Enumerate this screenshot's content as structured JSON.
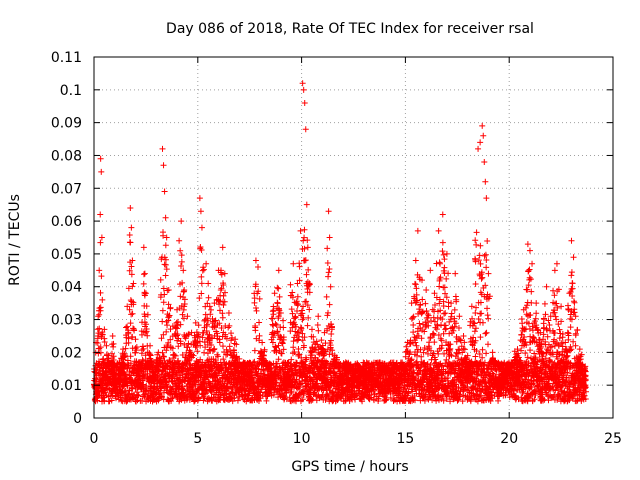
{
  "chart_data": {
    "type": "scatter",
    "title": "Day 086 of 2018, Rate Of TEC Index for receiver rsal",
    "xlabel": "GPS time / hours",
    "ylabel": "ROTI / TECUs",
    "xlim": [
      0,
      25
    ],
    "ylim": [
      0,
      0.11
    ],
    "xticks": [
      0,
      5,
      10,
      15,
      20,
      25
    ],
    "yticks": [
      0,
      0.01,
      0.02,
      0.03,
      0.04,
      0.05,
      0.06,
      0.07,
      0.08,
      0.09,
      0.1,
      0.11
    ],
    "xtick_labels": [
      "0",
      "5",
      "10",
      "15",
      "20",
      "25"
    ],
    "ytick_labels": [
      "0",
      "0.01",
      "0.02",
      "0.03",
      "0.04",
      "0.05",
      "0.06",
      "0.07",
      "0.08",
      "0.09",
      "0.1",
      "0.11"
    ],
    "grid": true,
    "marker": "plus",
    "color": "#ff0000",
    "time_range": [
      0,
      23.7
    ],
    "points": [
      [
        0.05,
        0.012
      ],
      [
        0.1,
        0.023
      ],
      [
        0.15,
        0.009
      ],
      [
        0.2,
        0.031
      ],
      [
        0.25,
        0.045
      ],
      [
        0.3,
        0.062
      ],
      [
        0.32,
        0.079
      ],
      [
        0.35,
        0.075
      ],
      [
        0.38,
        0.055
      ],
      [
        0.4,
        0.036
      ],
      [
        0.45,
        0.018
      ],
      [
        0.5,
        0.027
      ],
      [
        0.55,
        0.014
      ],
      [
        0.6,
        0.022
      ],
      [
        0.7,
        0.019
      ],
      [
        0.8,
        0.011
      ],
      [
        0.9,
        0.025
      ],
      [
        1.0,
        0.016
      ],
      [
        1.2,
        0.013
      ],
      [
        1.4,
        0.021
      ],
      [
        1.6,
        0.034
      ],
      [
        1.75,
        0.064
      ],
      [
        1.8,
        0.058
      ],
      [
        1.85,
        0.048
      ],
      [
        1.9,
        0.041
      ],
      [
        2.0,
        0.024
      ],
      [
        2.2,
        0.017
      ],
      [
        2.4,
        0.052
      ],
      [
        2.45,
        0.044
      ],
      [
        2.5,
        0.038
      ],
      [
        2.7,
        0.022
      ],
      [
        2.9,
        0.015
      ],
      [
        3.1,
        0.02
      ],
      [
        3.3,
        0.082
      ],
      [
        3.35,
        0.077
      ],
      [
        3.4,
        0.069
      ],
      [
        3.45,
        0.061
      ],
      [
        3.5,
        0.055
      ],
      [
        3.6,
        0.039
      ],
      [
        3.8,
        0.028
      ],
      [
        4.0,
        0.033
      ],
      [
        4.1,
        0.054
      ],
      [
        4.2,
        0.06
      ],
      [
        4.3,
        0.045
      ],
      [
        4.5,
        0.031
      ],
      [
        4.7,
        0.026
      ],
      [
        4.9,
        0.029
      ],
      [
        5.1,
        0.067
      ],
      [
        5.15,
        0.063
      ],
      [
        5.2,
        0.058
      ],
      [
        5.4,
        0.047
      ],
      [
        5.5,
        0.041
      ],
      [
        5.8,
        0.035
      ],
      [
        6.0,
        0.045
      ],
      [
        6.2,
        0.052
      ],
      [
        6.3,
        0.044
      ],
      [
        6.5,
        0.032
      ],
      [
        6.8,
        0.024
      ],
      [
        7.0,
        0.018
      ],
      [
        7.3,
        0.014
      ],
      [
        7.6,
        0.012
      ],
      [
        7.8,
        0.048
      ],
      [
        7.9,
        0.046
      ],
      [
        8.1,
        0.023
      ],
      [
        8.4,
        0.013
      ],
      [
        8.7,
        0.038
      ],
      [
        8.9,
        0.045
      ],
      [
        9.0,
        0.032
      ],
      [
        9.3,
        0.012
      ],
      [
        9.6,
        0.047
      ],
      [
        9.8,
        0.041
      ],
      [
        9.95,
        0.057
      ],
      [
        10.05,
        0.102
      ],
      [
        10.1,
        0.1
      ],
      [
        10.15,
        0.096
      ],
      [
        10.2,
        0.088
      ],
      [
        10.25,
        0.065
      ],
      [
        10.3,
        0.052
      ],
      [
        10.5,
        0.027
      ],
      [
        10.8,
        0.031
      ],
      [
        11.1,
        0.026
      ],
      [
        11.3,
        0.063
      ],
      [
        11.35,
        0.055
      ],
      [
        11.4,
        0.04
      ],
      [
        11.6,
        0.019
      ],
      [
        11.9,
        0.013
      ],
      [
        12.2,
        0.011
      ],
      [
        12.5,
        0.014
      ],
      [
        12.8,
        0.013
      ],
      [
        13.0,
        0.012
      ],
      [
        13.3,
        0.015
      ],
      [
        13.6,
        0.013
      ],
      [
        14.0,
        0.01
      ],
      [
        14.3,
        0.012
      ],
      [
        14.6,
        0.011
      ],
      [
        14.9,
        0.016
      ],
      [
        15.1,
        0.023
      ],
      [
        15.3,
        0.035
      ],
      [
        15.5,
        0.048
      ],
      [
        15.6,
        0.057
      ],
      [
        15.8,
        0.042
      ],
      [
        16.0,
        0.039
      ],
      [
        16.2,
        0.045
      ],
      [
        16.4,
        0.038
      ],
      [
        16.6,
        0.057
      ],
      [
        16.8,
        0.062
      ],
      [
        17.0,
        0.05
      ],
      [
        17.2,
        0.035
      ],
      [
        17.4,
        0.044
      ],
      [
        17.6,
        0.031
      ],
      [
        17.8,
        0.025
      ],
      [
        18.0,
        0.019
      ],
      [
        18.2,
        0.034
      ],
      [
        18.5,
        0.082
      ],
      [
        18.6,
        0.084
      ],
      [
        18.7,
        0.089
      ],
      [
        18.75,
        0.086
      ],
      [
        18.8,
        0.078
      ],
      [
        18.85,
        0.072
      ],
      [
        18.9,
        0.067
      ],
      [
        19.0,
        0.044
      ],
      [
        19.2,
        0.02
      ],
      [
        19.5,
        0.012
      ],
      [
        19.8,
        0.015
      ],
      [
        20.1,
        0.017
      ],
      [
        20.4,
        0.021
      ],
      [
        20.7,
        0.033
      ],
      [
        20.9,
        0.053
      ],
      [
        21.0,
        0.051
      ],
      [
        21.1,
        0.047
      ],
      [
        21.3,
        0.035
      ],
      [
        21.5,
        0.026
      ],
      [
        21.8,
        0.04
      ],
      [
        22.0,
        0.031
      ],
      [
        22.2,
        0.045
      ],
      [
        22.3,
        0.047
      ],
      [
        22.5,
        0.034
      ],
      [
        22.7,
        0.023
      ],
      [
        22.9,
        0.038
      ],
      [
        23.0,
        0.054
      ],
      [
        23.1,
        0.049
      ],
      [
        23.2,
        0.031
      ],
      [
        23.4,
        0.021
      ],
      [
        23.6,
        0.012
      ],
      [
        23.7,
        0.008
      ]
    ]
  }
}
